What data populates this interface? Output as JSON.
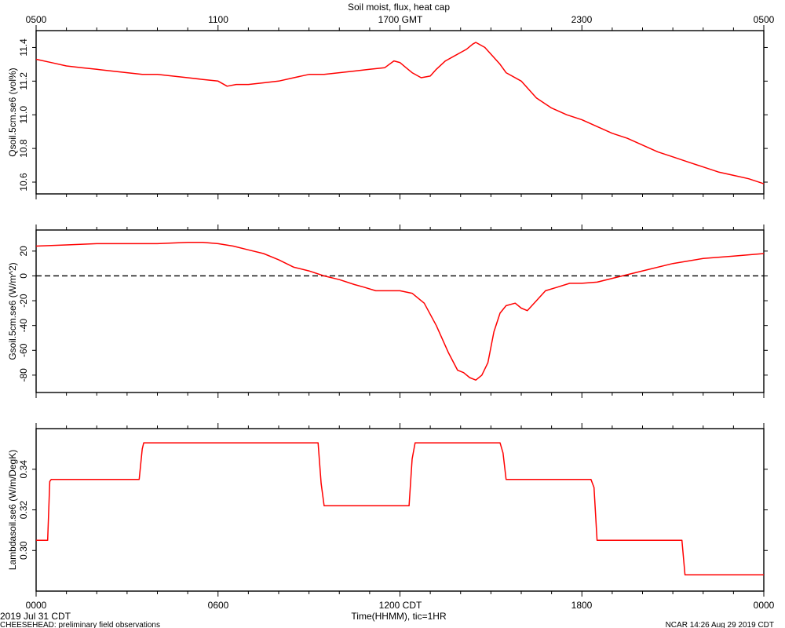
{
  "header": {
    "title": "Soil moist, flux, heat cap",
    "top_axis_labels": [
      "0500",
      "1100",
      "1700 GMT",
      "2300",
      "0500"
    ]
  },
  "footer": {
    "date_label": "2019 Jul 31 CDT",
    "xlabel": "Time(HHMM), tic=1HR",
    "project_note": "CHEESEHEAD: preliminary field observations",
    "ncar_stamp": "NCAR 14:26 Aug 29 2019 CDT",
    "bottom_axis_labels": [
      "0000",
      "0600",
      "1200 CDT",
      "1800",
      "0000"
    ]
  },
  "colors": {
    "series": "#ff0000",
    "axes": "#000000",
    "zero_line": "#000000"
  },
  "chart_data": [
    {
      "type": "line",
      "ylabel": "Qsoil.5cm.se6 (vol%)",
      "xlim": [
        0,
        24
      ],
      "ylim": [
        10.53,
        11.5
      ],
      "yticks": [
        10.6,
        10.8,
        11.0,
        11.2,
        11.4
      ],
      "ytick_labels": [
        "10.6",
        "10.8",
        "11.0",
        "11.2",
        "11.4"
      ],
      "grid": false,
      "series": [
        {
          "x": [
            0,
            0.5,
            1,
            1.5,
            2,
            2.5,
            3,
            3.5,
            4,
            4.5,
            5,
            5.5,
            6,
            6.3,
            6.6,
            7,
            7.5,
            8,
            8.5,
            9,
            9.5,
            10,
            10.5,
            11,
            11.5,
            11.8,
            12,
            12.2,
            12.4,
            12.7,
            13,
            13.2,
            13.5,
            13.8,
            14,
            14.2,
            14.4,
            14.5,
            14.8,
            15,
            15.3,
            15.5,
            16,
            16.5,
            17,
            17.5,
            18,
            18.5,
            19,
            19.5,
            20,
            20.5,
            21,
            21.5,
            22,
            22.5,
            23,
            23.5,
            24
          ],
          "y": [
            11.33,
            11.31,
            11.29,
            11.28,
            11.27,
            11.26,
            11.25,
            11.24,
            11.24,
            11.23,
            11.22,
            11.21,
            11.2,
            11.17,
            11.18,
            11.18,
            11.19,
            11.2,
            11.22,
            11.24,
            11.24,
            11.25,
            11.26,
            11.27,
            11.28,
            11.32,
            11.31,
            11.28,
            11.25,
            11.22,
            11.23,
            11.27,
            11.32,
            11.35,
            11.37,
            11.39,
            11.42,
            11.43,
            11.4,
            11.36,
            11.3,
            11.25,
            11.2,
            11.1,
            11.04,
            11.0,
            10.97,
            10.93,
            10.89,
            10.86,
            10.82,
            10.78,
            10.75,
            10.72,
            10.69,
            10.66,
            10.64,
            10.62,
            10.59
          ]
        }
      ]
    },
    {
      "type": "line",
      "ylabel": "Gsoil.5cm.se6 (W/m^2)",
      "xlim": [
        0,
        24
      ],
      "ylim": [
        -94,
        37
      ],
      "yticks": [
        -80,
        -60,
        -40,
        -20,
        0,
        20
      ],
      "ytick_labels": [
        "-80",
        "-60",
        "-40",
        "-20",
        "0",
        "20"
      ],
      "zero_line": true,
      "grid": false,
      "series": [
        {
          "x": [
            0,
            1,
            2,
            3,
            4,
            5,
            5.5,
            6,
            6.5,
            7,
            7.5,
            8,
            8.5,
            9,
            9.5,
            10,
            10.5,
            10.8,
            11.2,
            11.6,
            12,
            12.4,
            12.8,
            13.2,
            13.6,
            13.9,
            14.1,
            14.3,
            14.5,
            14.7,
            14.9,
            15.1,
            15.3,
            15.5,
            15.8,
            16,
            16.2,
            16.5,
            16.8,
            17.2,
            17.6,
            18,
            18.5,
            19,
            20,
            21,
            22,
            23,
            24
          ],
          "y": [
            24,
            25,
            26,
            26,
            26,
            27,
            27,
            26,
            24,
            21,
            18,
            13,
            7,
            4,
            0,
            -3,
            -7,
            -9,
            -12,
            -12,
            -12,
            -14,
            -22,
            -40,
            -62,
            -76,
            -78,
            -82,
            -84,
            -80,
            -70,
            -45,
            -30,
            -24,
            -22,
            -26,
            -28,
            -20,
            -12,
            -9,
            -6,
            -6,
            -5,
            -2,
            4,
            10,
            14,
            16,
            18
          ]
        }
      ]
    },
    {
      "type": "line",
      "ylabel": "Lambdasoil.se6 (W/m/DegK)",
      "xlim": [
        0,
        24
      ],
      "ylim": [
        0.28,
        0.36
      ],
      "yticks": [
        0.3,
        0.32,
        0.34
      ],
      "ytick_labels": [
        "0.30",
        "0.32",
        "0.34"
      ],
      "grid": false,
      "series": [
        {
          "x": [
            0,
            0.38,
            0.45,
            0.5,
            3.4,
            3.5,
            3.55,
            3.6,
            9.3,
            9.4,
            9.5,
            12.3,
            12.4,
            12.5,
            15.3,
            15.4,
            15.5,
            15.6,
            18.3,
            18.4,
            18.5,
            21.3,
            21.4,
            21.5,
            24
          ],
          "y": [
            0.305,
            0.305,
            0.334,
            0.335,
            0.335,
            0.35,
            0.353,
            0.353,
            0.353,
            0.333,
            0.322,
            0.322,
            0.345,
            0.353,
            0.353,
            0.348,
            0.335,
            0.335,
            0.335,
            0.331,
            0.305,
            0.305,
            0.288,
            0.288,
            0.288
          ]
        }
      ]
    }
  ]
}
